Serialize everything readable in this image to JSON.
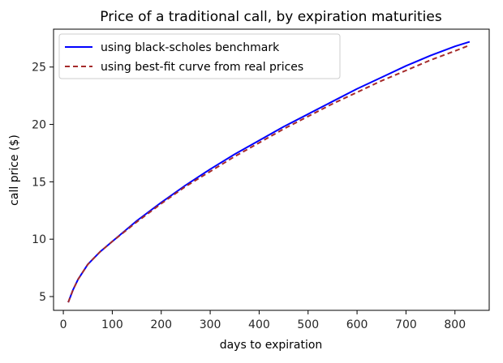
{
  "chart_data": {
    "type": "line",
    "title": "Price of a traditional call, by expiration maturities",
    "xlabel": "days to expiration",
    "ylabel": "call price ($)",
    "xlim": [
      -20,
      870
    ],
    "ylim": [
      3.8,
      28.3
    ],
    "xticks": [
      0,
      100,
      200,
      300,
      400,
      500,
      600,
      700,
      800
    ],
    "yticks": [
      5,
      10,
      15,
      20,
      25
    ],
    "legend_position": "upper-left",
    "grid": false,
    "series": [
      {
        "name": "using black-scholes benchmark",
        "color": "#0000ff",
        "style": "solid",
        "x": [
          10,
          20,
          30,
          50,
          75,
          100,
          150,
          200,
          250,
          300,
          350,
          400,
          450,
          500,
          550,
          600,
          650,
          700,
          750,
          800,
          830
        ],
        "y": [
          4.5,
          5.6,
          6.5,
          7.8,
          8.9,
          9.8,
          11.6,
          13.2,
          14.7,
          16.1,
          17.4,
          18.6,
          19.8,
          20.9,
          22.0,
          23.1,
          24.1,
          25.1,
          26.0,
          26.8,
          27.2
        ]
      },
      {
        "name": "using best-fit curve from real prices",
        "color": "#a52a2a",
        "style": "dashed",
        "x": [
          10,
          20,
          30,
          50,
          75,
          100,
          150,
          200,
          250,
          300,
          350,
          400,
          450,
          500,
          550,
          600,
          650,
          700,
          750,
          800,
          830
        ],
        "y": [
          4.5,
          5.6,
          6.5,
          7.8,
          8.9,
          9.8,
          11.5,
          13.1,
          14.6,
          15.9,
          17.2,
          18.4,
          19.6,
          20.7,
          21.8,
          22.8,
          23.8,
          24.7,
          25.6,
          26.4,
          26.9
        ]
      }
    ]
  }
}
